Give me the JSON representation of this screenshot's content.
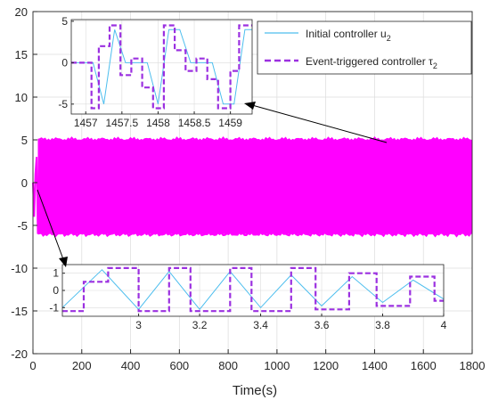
{
  "colors": {
    "initial": "#4dbeee",
    "event": "#9b30e0",
    "fill": "#ff00ff",
    "axis": "#262626",
    "grid": "#dcdcdc"
  },
  "chart_data": [
    {
      "type": "line",
      "role": "main",
      "xlabel": "Time(s)",
      "ylabel": "",
      "xlim": [
        0,
        1800
      ],
      "ylim": [
        -20,
        20
      ],
      "x_ticks": [
        0,
        200,
        400,
        600,
        800,
        1000,
        1200,
        1400,
        1600,
        1800
      ],
      "y_ticks": [
        -20,
        -15,
        -10,
        -5,
        0,
        5,
        10,
        15,
        20
      ],
      "x_tick_labels": [
        "0",
        "200",
        "400",
        "600",
        "800",
        "1000",
        "1200",
        "1400",
        "1600",
        "1800"
      ],
      "y_tick_labels": [
        "-20",
        "-15",
        "-10",
        "-5",
        "0",
        "5",
        "10",
        "15",
        "20"
      ],
      "grid": true,
      "legend_position": "top-right",
      "series": [
        {
          "name": "Initial controller u",
          "name_subscript": "2",
          "style": "solid",
          "color": "#4dbeee"
        },
        {
          "name": "Event-triggered controller τ",
          "name_subscript": "2",
          "style": "dashed",
          "color": "#9b30e0"
        }
      ],
      "oscillation_band": {
        "x_start": 20,
        "x_end": 1800,
        "upper": 5,
        "lower": -6
      },
      "startup": {
        "x": [
          0,
          5,
          10,
          15,
          20
        ],
        "y": [
          0,
          -4,
          1,
          3,
          -6
        ]
      }
    },
    {
      "type": "line",
      "role": "inset-top",
      "xlim": [
        1456.8,
        1459.3
      ],
      "ylim": [
        -6.2,
        5.2
      ],
      "x_ticks": [
        1457,
        1457.5,
        1458,
        1458.5,
        1459
      ],
      "y_ticks": [
        -5,
        0,
        5
      ],
      "x_tick_labels": [
        "1457",
        "1457.5",
        "1458",
        "1458.5",
        "1459"
      ],
      "y_tick_labels": [
        "-5",
        "0",
        "5"
      ],
      "series": [
        {
          "name": "Initial controller u2",
          "x": [
            1456.8,
            1456.95,
            1457.1,
            1457.25,
            1457.4,
            1457.55,
            1457.7,
            1457.85,
            1458.0,
            1458.15,
            1458.3,
            1458.45,
            1458.6,
            1458.75,
            1458.9,
            1459.05,
            1459.2,
            1459.3
          ],
          "y": [
            0,
            0,
            0,
            -5,
            4,
            0,
            0,
            0,
            -5,
            4,
            4,
            0,
            0,
            0,
            -5,
            -5,
            4,
            4
          ]
        },
        {
          "name": "Event-triggered controller tau2",
          "x": [
            1456.8,
            1457.08,
            1457.08,
            1457.18,
            1457.18,
            1457.33,
            1457.33,
            1457.48,
            1457.48,
            1457.63,
            1457.63,
            1457.78,
            1457.78,
            1457.93,
            1457.93,
            1458.08,
            1458.08,
            1458.23,
            1458.23,
            1458.38,
            1458.38,
            1458.53,
            1458.53,
            1458.68,
            1458.68,
            1458.83,
            1458.83,
            1459.0,
            1459.0,
            1459.12,
            1459.12,
            1459.3
          ],
          "y": [
            0,
            0,
            -5.5,
            -5.5,
            2,
            2,
            4.5,
            4.5,
            -1.5,
            -1.5,
            0.5,
            0.5,
            -3,
            -3,
            -5.5,
            -5.5,
            4.5,
            4.5,
            1.5,
            1.5,
            -1,
            -1,
            0.5,
            0.5,
            -2,
            -2,
            -5.5,
            -5.5,
            -1,
            -1,
            4.5,
            4.5
          ]
        }
      ]
    },
    {
      "type": "line",
      "role": "inset-bottom",
      "xlim": [
        2.75,
        4.0
      ],
      "ylim": [
        -1.5,
        1.5
      ],
      "x_ticks": [
        3,
        3.2,
        3.4,
        3.6,
        3.8,
        4
      ],
      "y_ticks": [
        -1,
        0,
        1
      ],
      "x_tick_labels": [
        "3",
        "3.2",
        "3.4",
        "3.6",
        "3.8",
        "4"
      ],
      "y_tick_labels": [
        "-1",
        "0",
        "1"
      ],
      "series": [
        {
          "name": "Initial controller u2",
          "x": [
            2.75,
            2.88,
            3.0,
            3.1,
            3.2,
            3.3,
            3.4,
            3.5,
            3.6,
            3.7,
            3.8,
            3.9,
            4.0
          ],
          "y": [
            -1,
            1.2,
            -1.1,
            1.1,
            -1.1,
            1.1,
            -1.0,
            0.9,
            -0.9,
            0.8,
            -0.7,
            0.6,
            -0.5
          ]
        },
        {
          "name": "Event-triggered controller tau2",
          "x": [
            2.75,
            2.82,
            2.82,
            2.9,
            2.9,
            3.0,
            3.0,
            3.1,
            3.1,
            3.17,
            3.17,
            3.3,
            3.3,
            3.37,
            3.37,
            3.5,
            3.5,
            3.58,
            3.58,
            3.69,
            3.69,
            3.78,
            3.78,
            3.89,
            3.89,
            3.97,
            3.97,
            4.0
          ],
          "y": [
            -1.2,
            -1.2,
            0.5,
            0.5,
            1.3,
            1.3,
            -1.2,
            -1.2,
            1.3,
            1.3,
            -1.2,
            -1.2,
            1.3,
            1.3,
            -1.2,
            -1.2,
            1.3,
            1.3,
            -1.1,
            -1.1,
            1.0,
            1.0,
            -0.9,
            -0.9,
            0.8,
            0.8,
            -0.6,
            -0.6
          ]
        }
      ]
    }
  ]
}
